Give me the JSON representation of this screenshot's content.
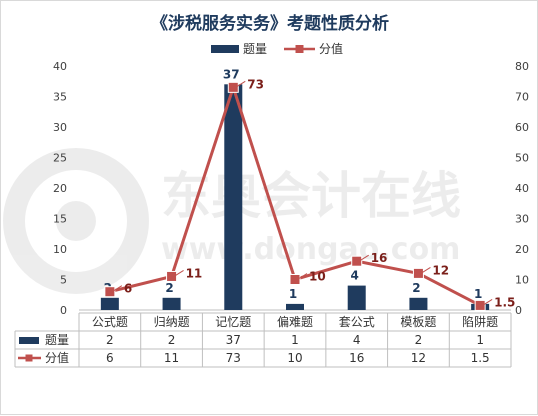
{
  "chart_data": {
    "type": "bar",
    "title": "《涉税服务实务》考题性质分析",
    "categories": [
      "公式题",
      "归纳题",
      "记忆题",
      "偏难题",
      "套公式",
      "模板题",
      "陷阱题"
    ],
    "series": [
      {
        "name": "题量",
        "kind": "bar",
        "axis": "left",
        "values": [
          2,
          2,
          37,
          1,
          4,
          2,
          1
        ],
        "color": "#1f3b5e"
      },
      {
        "name": "分值",
        "kind": "line",
        "axis": "right",
        "values": [
          6,
          11,
          73,
          10,
          16,
          12,
          1.5
        ],
        "color": "#c0504d"
      }
    ],
    "y_left": {
      "min": 0,
      "max": 40,
      "ticks": [
        0,
        5,
        10,
        15,
        20,
        25,
        30,
        35,
        40
      ]
    },
    "y_right": {
      "min": 0,
      "max": 80,
      "ticks": [
        0,
        10,
        20,
        30,
        40,
        50,
        60,
        70,
        80
      ]
    },
    "legend_position": "top",
    "data_table": true,
    "grid": false,
    "watermark": {
      "text": "东奥会计在线",
      "url": "www.dongao.com"
    }
  }
}
